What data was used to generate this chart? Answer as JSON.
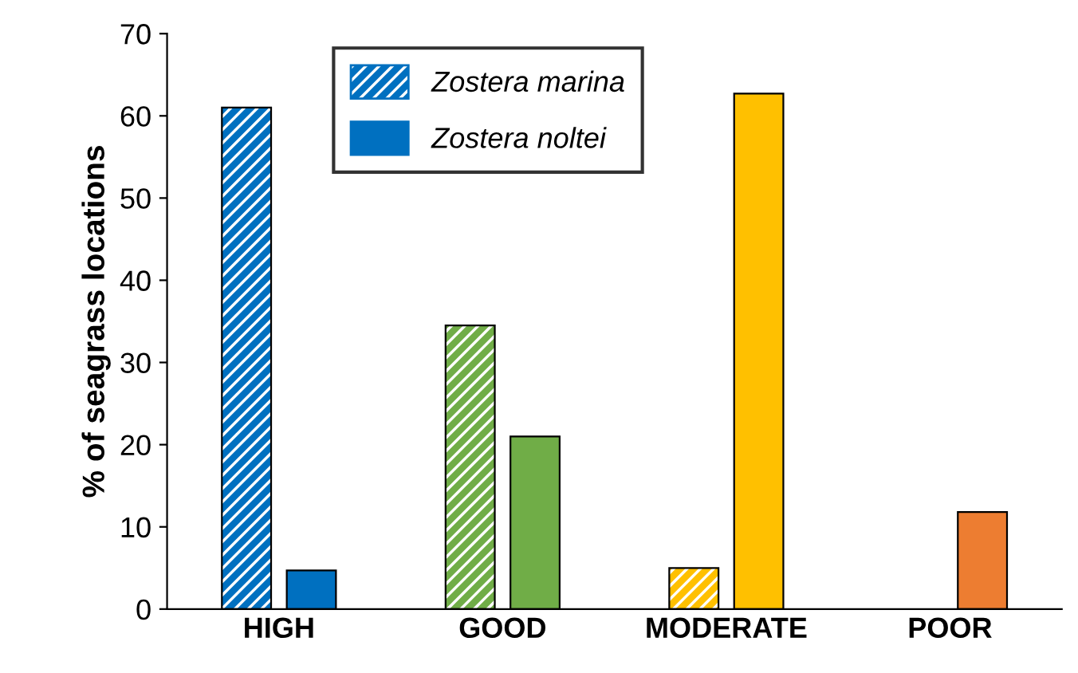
{
  "chart_data": {
    "type": "bar",
    "ylabel": "% of seagrass locations",
    "categories": [
      "HIGH",
      "GOOD",
      "MODERATE",
      "POOR"
    ],
    "series": [
      {
        "name": "Zostera marina",
        "color": "#0070c0",
        "colors": [
          "#0070c0",
          "#70ad47",
          "#ffc000",
          "#ed7d31"
        ],
        "values": [
          61,
          34.5,
          5,
          null
        ]
      },
      {
        "name": "Zostera noltei",
        "color": "#0070c0",
        "colors": [
          "#0070c0",
          "#70ad47",
          "#ffc000",
          "#ed7d31"
        ],
        "values": [
          4.7,
          21,
          62.7,
          11.8
        ]
      }
    ],
    "ylim": [
      0,
      70
    ],
    "yticks": [
      0,
      10,
      20,
      30,
      40,
      50,
      60,
      70
    ],
    "grid": false,
    "legend": "top"
  }
}
